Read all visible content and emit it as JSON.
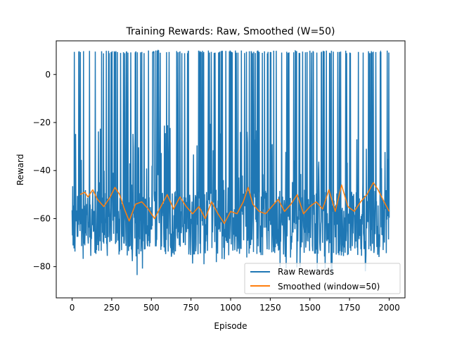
{
  "chart_data": {
    "type": "line",
    "title": "Training Rewards: Raw, Smoothed (W=50)",
    "xlabel": "Episode",
    "ylabel": "Reward",
    "xlim": [
      -100,
      2100
    ],
    "ylim": [
      -93,
      14
    ],
    "xticks": [
      0,
      250,
      500,
      750,
      1000,
      1250,
      1500,
      1750,
      2000
    ],
    "yticks": [
      -80,
      -60,
      -40,
      -20,
      0
    ],
    "grid": false,
    "legend_position": "lower-right",
    "series": [
      {
        "name": "Raw Rewards",
        "color": "#1f77b4",
        "description_points": {
          "x_range": [
            0,
            2000
          ],
          "baseline_band": [
            -80,
            -45
          ],
          "spike_value": 10,
          "min_value": -88,
          "max_value": 12
        }
      },
      {
        "name": "Smoothed (window=50)",
        "color": "#ff7f0e",
        "x": [
          50,
          80,
          100,
          130,
          160,
          200,
          240,
          270,
          300,
          330,
          360,
          400,
          440,
          480,
          520,
          560,
          600,
          640,
          680,
          720,
          760,
          800,
          840,
          880,
          920,
          960,
          1000,
          1040,
          1080,
          1110,
          1140,
          1180,
          1220,
          1260,
          1300,
          1340,
          1380,
          1420,
          1460,
          1500,
          1540,
          1580,
          1620,
          1660,
          1700,
          1740,
          1780,
          1820,
          1860,
          1900,
          1930,
          1960,
          2000
        ],
        "values": [
          -50,
          -49,
          -51,
          -48,
          -52,
          -55,
          -51,
          -47,
          -50,
          -56,
          -61,
          -54,
          -53,
          -56,
          -60,
          -55,
          -50,
          -56,
          -51,
          -55,
          -58,
          -55,
          -60,
          -53,
          -58,
          -62,
          -57,
          -58,
          -53,
          -47,
          -54,
          -57,
          -58,
          -55,
          -52,
          -57,
          -54,
          -50,
          -58,
          -55,
          -53,
          -56,
          -48,
          -57,
          -46,
          -55,
          -57,
          -53,
          -50,
          -45,
          -48,
          -52,
          -57
        ]
      }
    ]
  }
}
